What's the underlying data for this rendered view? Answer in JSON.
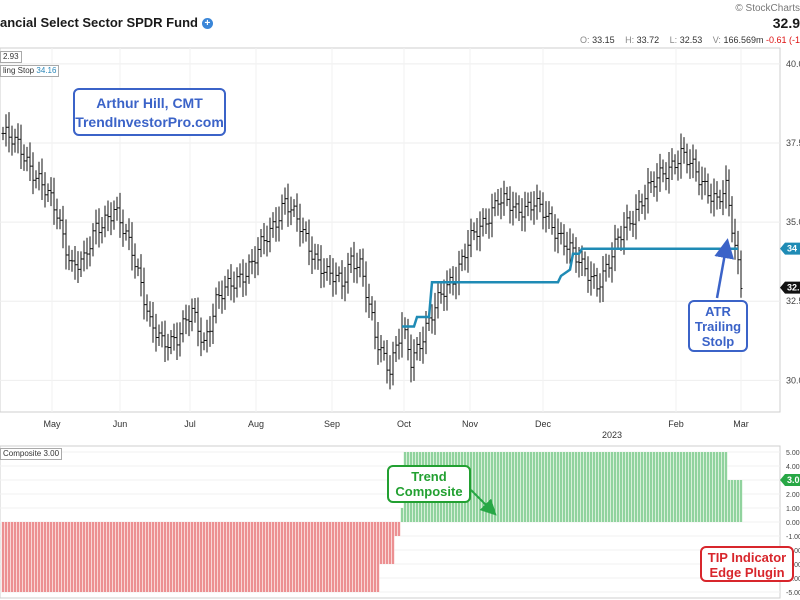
{
  "header": {
    "title": "ancial Select Sector SPDR Fund",
    "copyright": "© StockCharts",
    "last_price": "32.9",
    "ohlc": {
      "o_label": "O:",
      "o": "33.15",
      "h_label": "H:",
      "h": "33.72",
      "l_label": "L:",
      "l": "32.53",
      "v_label": "V:",
      "v": "166.569m",
      "change": "-0.61 (-1"
    }
  },
  "annotations": {
    "author_line1": "Arthur Hill, CMT",
    "author_line2": "TrendInvestorPro.com",
    "atr_line1": "ATR",
    "atr_line2": "Trailing",
    "atr_line3": "Stolp",
    "trend_line1": "Trend",
    "trend_line2": "Composite",
    "tip_line1": "TIP Indicator",
    "tip_line2": "Edge Plugin"
  },
  "legend": {
    "price": "2.93",
    "stop_label": "ling Stop",
    "stop_value": "34.16",
    "composite_label": "Composite",
    "composite_value": "3.00"
  },
  "colors": {
    "stop_line": "#1f8bb5",
    "bull": "#27a745",
    "bear": "#d8262c",
    "author": "#3b63c8"
  },
  "chart_data": [
    {
      "type": "bar",
      "title": "",
      "x_tick_labels": [
        "May",
        "Jun",
        "Jul",
        "Aug",
        "Sep",
        "Oct",
        "Nov",
        "Dec",
        "2023",
        "Feb",
        "Mar"
      ],
      "y_tick_labels": [
        "40.0",
        "37.5",
        "35.0",
        "32.5",
        "30.0"
      ],
      "ylim": [
        29.0,
        40.5
      ],
      "y_ticks": [
        40,
        37.5,
        35,
        32.5,
        30
      ],
      "price_badge": "32.",
      "stop_badge": "34",
      "close_anchors": [
        [
          0,
          37.8
        ],
        [
          6,
          37.3
        ],
        [
          12,
          36.3
        ],
        [
          18,
          35.3
        ],
        [
          23,
          33.6
        ],
        [
          27,
          33.7
        ],
        [
          31,
          34.9
        ],
        [
          37,
          35.3
        ],
        [
          43,
          34.2
        ],
        [
          46,
          33.1
        ],
        [
          49,
          31.7
        ],
        [
          53,
          31.2
        ],
        [
          58,
          31.4
        ],
        [
          63,
          32.1
        ],
        [
          67,
          31.2
        ],
        [
          71,
          32.5
        ],
        [
          76,
          33.0
        ],
        [
          83,
          33.7
        ],
        [
          89,
          34.7
        ],
        [
          94,
          35.7
        ],
        [
          98,
          35.0
        ],
        [
          103,
          34.1
        ],
        [
          108,
          33.3
        ],
        [
          113,
          33.1
        ],
        [
          116,
          33.9
        ],
        [
          119,
          33.6
        ],
        [
          124,
          31.4
        ],
        [
          129,
          30.4
        ],
        [
          133,
          31.6
        ],
        [
          136,
          30.6
        ],
        [
          141,
          31.7
        ],
        [
          147,
          32.8
        ],
        [
          151,
          33.4
        ],
        [
          155,
          34.3
        ],
        [
          160,
          34.9
        ],
        [
          165,
          35.8
        ],
        [
          171,
          35.3
        ],
        [
          177,
          35.7
        ],
        [
          183,
          34.8
        ],
        [
          188,
          34.4
        ],
        [
          193,
          33.5
        ],
        [
          198,
          33.1
        ],
        [
          202,
          33.7
        ],
        [
          207,
          34.8
        ],
        [
          213,
          35.7
        ],
        [
          220,
          36.6
        ],
        [
          226,
          37.1
        ],
        [
          230,
          36.7
        ],
        [
          234,
          36.2
        ],
        [
          238,
          35.6
        ],
        [
          241,
          36.0
        ],
        [
          244,
          34.3
        ],
        [
          246,
          33.1
        ]
      ],
      "stop_series": [
        [
          133,
          31.7
        ],
        [
          137,
          31.7
        ],
        [
          138,
          32.0
        ],
        [
          142,
          32.0
        ],
        [
          143,
          33.1
        ],
        [
          185,
          33.1
        ],
        [
          186,
          33.3
        ],
        [
          189,
          33.5
        ],
        [
          190,
          34.0
        ],
        [
          192,
          34.0
        ],
        [
          193,
          34.16
        ],
        [
          245,
          34.16
        ]
      ]
    },
    {
      "type": "bar",
      "title": "",
      "y_tick_labels": [
        "5.00",
        "4.00",
        "3.00",
        "2.00",
        "1.00",
        "0.00",
        "-1.00",
        "-2.00",
        "-3.00",
        "-4.00",
        "-5.00"
      ],
      "ylim": [
        -5.0,
        5.0
      ],
      "composite_badge": "3.0",
      "segments": [
        {
          "from": 0,
          "to": 125,
          "value": -5.0
        },
        {
          "from": 126,
          "to": 130,
          "value": -3.0
        },
        {
          "from": 131,
          "to": 132,
          "value": -1.0
        },
        {
          "from": 133,
          "to": 133,
          "value": 1.0
        },
        {
          "from": 134,
          "to": 241,
          "value": 5.0
        },
        {
          "from": 242,
          "to": 246,
          "value": 3.0
        }
      ]
    }
  ]
}
